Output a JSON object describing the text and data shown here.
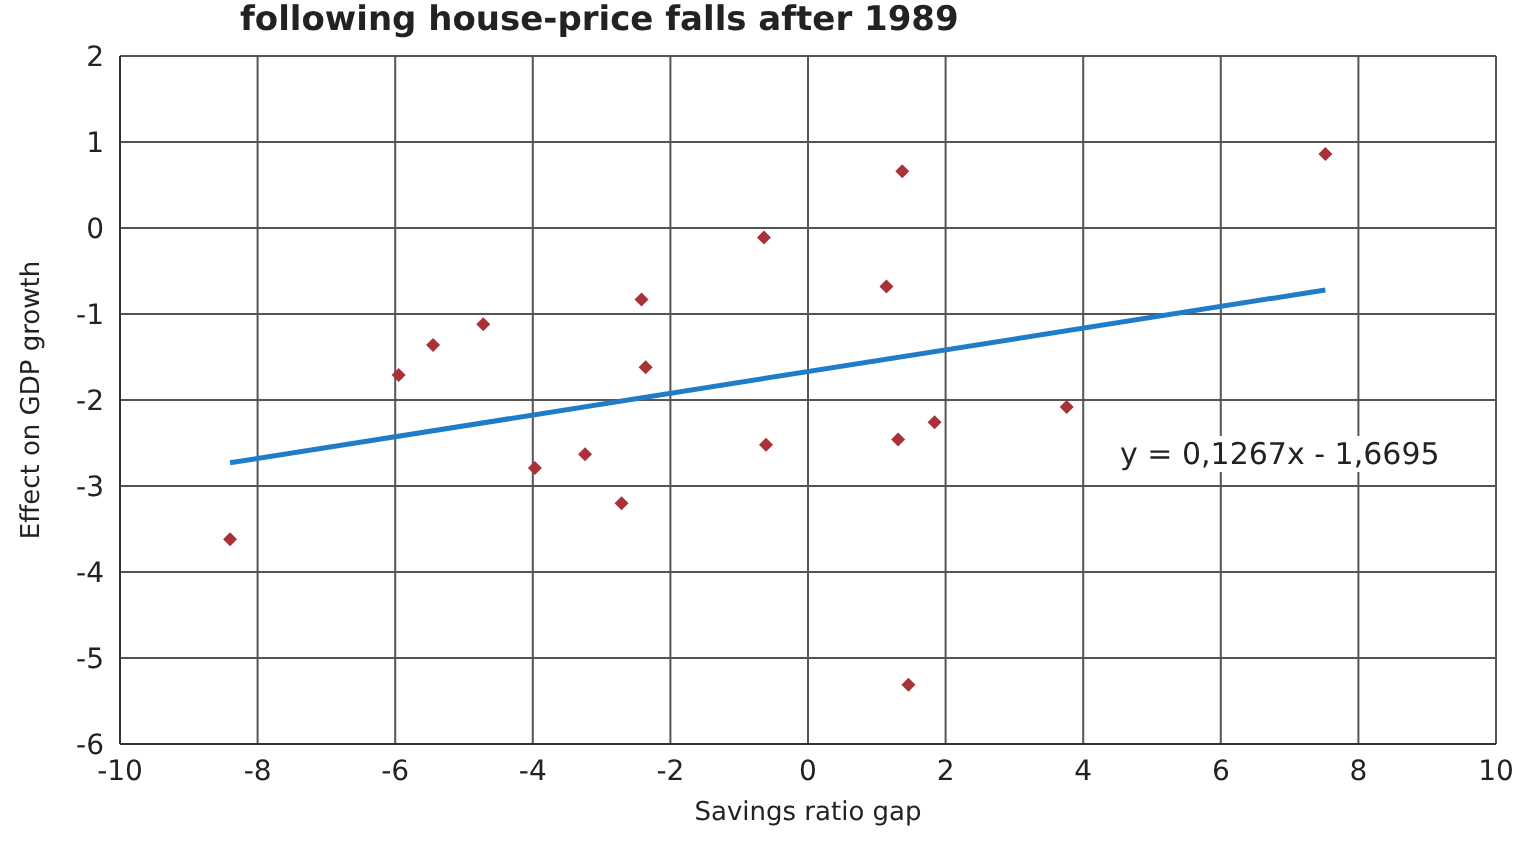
{
  "chart_data": {
    "type": "scatter",
    "title": "following house-price falls after 1989",
    "xlabel": "Savings ratio gap",
    "ylabel": "Effect on GDP growth",
    "xlim": [
      -10,
      10
    ],
    "xticks": [
      -10,
      -8,
      -6,
      -4,
      -2,
      0,
      2,
      4,
      6,
      8,
      10
    ],
    "ylim": [
      -6,
      2
    ],
    "yticks": [
      -6,
      -5,
      -4,
      -3,
      -2,
      -1,
      0,
      1,
      2
    ],
    "grid": true,
    "legend": false,
    "marker": "diamond",
    "annotations": [
      "y = 0,1267x - 1,6695"
    ],
    "series": [
      {
        "color": "#a83238",
        "x": [
          -8.4,
          -5.95,
          -5.45,
          -4.72,
          -3.97,
          -3.24,
          -2.71,
          -2.42,
          -2.36,
          -0.64,
          -0.61,
          1.14,
          1.31,
          1.37,
          1.46,
          1.84,
          3.76,
          7.52
        ],
        "values": [
          -3.62,
          -1.71,
          -1.36,
          -1.12,
          -2.79,
          -2.63,
          -3.2,
          -0.83,
          -1.62,
          -0.11,
          -2.52,
          -0.68,
          -2.46,
          0.66,
          -5.31,
          -2.26,
          -2.08,
          0.86
        ]
      },
      {
        "type": "line",
        "color": "#1f7cc8",
        "marker": "none",
        "x": [
          -8.4,
          7.52
        ],
        "values": [
          -2.73,
          -0.72
        ]
      }
    ]
  }
}
